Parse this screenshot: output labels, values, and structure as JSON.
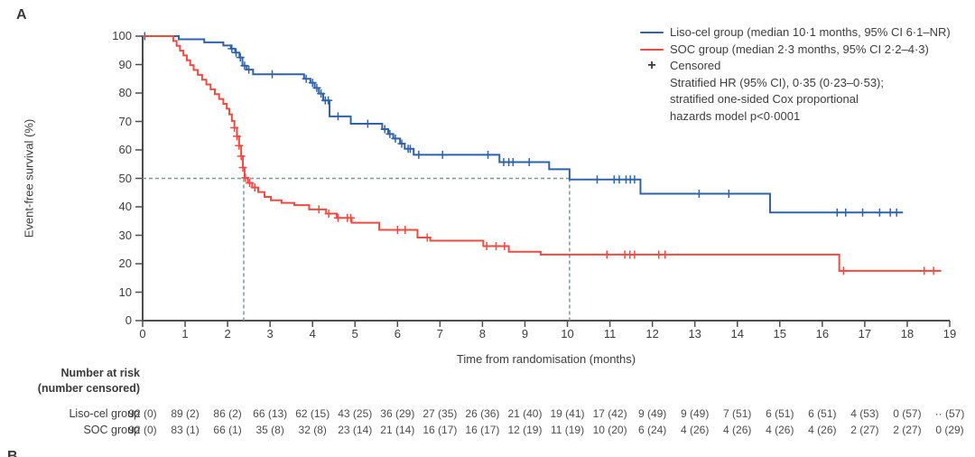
{
  "panel_label": "A",
  "panel_label_b": "B",
  "colors": {
    "liso": "#2f62ab",
    "soc": "#ee4b42",
    "dashed": "#7f96a1",
    "axis": "#4d4d4d",
    "text": "#3d3d3d"
  },
  "chart_data": {
    "type": "line",
    "subtype": "kaplan-meier-step",
    "title": "",
    "xlabel": "Time from randomisation (months)",
    "ylabel": "Event-free survival (%)",
    "xlim": [
      0,
      19
    ],
    "ylim": [
      0,
      100
    ],
    "x_ticks": [
      0,
      1,
      2,
      3,
      4,
      5,
      6,
      7,
      8,
      9,
      10,
      11,
      12,
      13,
      14,
      15,
      16,
      17,
      18,
      19
    ],
    "y_ticks": [
      0,
      10,
      20,
      30,
      40,
      50,
      60,
      70,
      80,
      90,
      100
    ],
    "grid": false,
    "legend_position": "top-right",
    "reference": {
      "h_pct": 50,
      "v_months": [
        2.38,
        10.05
      ]
    },
    "series": [
      {
        "name": "Liso-cel group",
        "median_months": "10·1",
        "ci_95": "6·1–NR",
        "steps": [
          [
            0,
            100
          ],
          [
            0.85,
            98.9
          ],
          [
            1.45,
            97.8
          ],
          [
            1.9,
            96.7
          ],
          [
            2.08,
            95.6
          ],
          [
            2.18,
            94.2
          ],
          [
            2.28,
            92.5
          ],
          [
            2.35,
            89.6
          ],
          [
            2.45,
            88.2
          ],
          [
            2.6,
            86.6
          ],
          [
            3.8,
            85
          ],
          [
            3.95,
            83.6
          ],
          [
            4.05,
            81.8
          ],
          [
            4.15,
            79.8
          ],
          [
            4.25,
            77.4
          ],
          [
            4.4,
            71.8
          ],
          [
            4.9,
            69.2
          ],
          [
            5.64,
            67.3
          ],
          [
            5.78,
            65.6
          ],
          [
            5.9,
            64
          ],
          [
            6.06,
            62.2
          ],
          [
            6.17,
            60.4
          ],
          [
            6.38,
            58.3
          ],
          [
            8.4,
            55.7
          ],
          [
            9.57,
            53.2
          ],
          [
            10.05,
            49.6
          ],
          [
            11.72,
            44.6
          ],
          [
            14.77,
            38
          ],
          [
            17.9,
            38
          ]
        ],
        "censors": [
          [
            0.05,
            100
          ],
          [
            2.1,
            95.6
          ],
          [
            2.2,
            94.2
          ],
          [
            2.3,
            92.5
          ],
          [
            2.4,
            89.6
          ],
          [
            2.5,
            88.2
          ],
          [
            3.05,
            86.6
          ],
          [
            3.85,
            85
          ],
          [
            4.0,
            83.6
          ],
          [
            4.1,
            81.8
          ],
          [
            4.2,
            79.8
          ],
          [
            4.3,
            77.4
          ],
          [
            4.37,
            77.4
          ],
          [
            4.6,
            71.8
          ],
          [
            5.3,
            69.2
          ],
          [
            5.7,
            67.3
          ],
          [
            5.82,
            65.6
          ],
          [
            5.95,
            64
          ],
          [
            6.1,
            62.2
          ],
          [
            6.25,
            60.4
          ],
          [
            6.3,
            60.4
          ],
          [
            6.5,
            58.3
          ],
          [
            7.06,
            58.3
          ],
          [
            8.13,
            58.3
          ],
          [
            8.5,
            55.7
          ],
          [
            8.62,
            55.7
          ],
          [
            8.72,
            55.7
          ],
          [
            9.1,
            55.7
          ],
          [
            10.7,
            49.6
          ],
          [
            11.1,
            49.6
          ],
          [
            11.22,
            49.6
          ],
          [
            11.38,
            49.6
          ],
          [
            11.48,
            49.6
          ],
          [
            11.58,
            49.6
          ],
          [
            13.1,
            44.6
          ],
          [
            13.8,
            44.6
          ],
          [
            16.35,
            38
          ],
          [
            16.55,
            38
          ],
          [
            16.95,
            38
          ],
          [
            17.35,
            38
          ],
          [
            17.6,
            38
          ],
          [
            17.75,
            38
          ]
        ]
      },
      {
        "name": "SOC group",
        "median_months": "2·3",
        "ci_95": "2·2–4·3",
        "steps": [
          [
            0,
            100
          ],
          [
            0.72,
            98.3
          ],
          [
            0.8,
            96.6
          ],
          [
            0.88,
            94.9
          ],
          [
            0.96,
            93.2
          ],
          [
            1.04,
            91.5
          ],
          [
            1.12,
            89.8
          ],
          [
            1.2,
            88.1
          ],
          [
            1.3,
            86.4
          ],
          [
            1.4,
            84.7
          ],
          [
            1.5,
            83
          ],
          [
            1.6,
            81.3
          ],
          [
            1.7,
            79.6
          ],
          [
            1.8,
            77.9
          ],
          [
            1.9,
            76.2
          ],
          [
            1.98,
            74.5
          ],
          [
            2.04,
            72.5
          ],
          [
            2.1,
            70.2
          ],
          [
            2.16,
            67.8
          ],
          [
            2.22,
            64.8
          ],
          [
            2.27,
            61.5
          ],
          [
            2.32,
            57.8
          ],
          [
            2.36,
            53.8
          ],
          [
            2.4,
            50.2
          ],
          [
            2.48,
            48.4
          ],
          [
            2.58,
            46.8
          ],
          [
            2.72,
            45.2
          ],
          [
            2.87,
            43.5
          ],
          [
            3.02,
            42.3
          ],
          [
            3.27,
            41.4
          ],
          [
            3.57,
            40.6
          ],
          [
            3.92,
            39.1
          ],
          [
            4.32,
            37.6
          ],
          [
            4.57,
            36.1
          ],
          [
            4.92,
            34.4
          ],
          [
            5.57,
            31.9
          ],
          [
            6.47,
            29.2
          ],
          [
            6.77,
            28.1
          ],
          [
            8.02,
            26.2
          ],
          [
            8.62,
            24.2
          ],
          [
            9.37,
            23.2
          ],
          [
            16.4,
            17.5
          ],
          [
            18.8,
            17.5
          ]
        ],
        "censors": [
          [
            2.16,
            67.8
          ],
          [
            2.22,
            64.8
          ],
          [
            2.27,
            61.5
          ],
          [
            2.32,
            57.8
          ],
          [
            2.36,
            53.8
          ],
          [
            2.42,
            50.2
          ],
          [
            2.52,
            48.4
          ],
          [
            2.64,
            46.8
          ],
          [
            4.15,
            39.1
          ],
          [
            4.38,
            37.6
          ],
          [
            4.6,
            36.1
          ],
          [
            4.82,
            36.1
          ],
          [
            4.9,
            36.1
          ],
          [
            6.0,
            31.9
          ],
          [
            6.18,
            31.9
          ],
          [
            6.7,
            29.2
          ],
          [
            8.1,
            26.2
          ],
          [
            8.32,
            26.2
          ],
          [
            8.52,
            26.2
          ],
          [
            10.93,
            23.2
          ],
          [
            11.35,
            23.2
          ],
          [
            11.47,
            23.2
          ],
          [
            11.58,
            23.2
          ],
          [
            12.15,
            23.2
          ],
          [
            12.3,
            23.2
          ],
          [
            16.5,
            17.5
          ],
          [
            18.4,
            17.5
          ],
          [
            18.62,
            17.5
          ]
        ]
      }
    ]
  },
  "legend": {
    "items": [
      {
        "label": "Liso-cel group (median 10·1 months, 95% CI 6·1–NR)",
        "swatch": "line",
        "color": "#2f62ab"
      },
      {
        "label": "SOC group (median 2·3 months, 95% CI 2·2–4·3)",
        "swatch": "line",
        "color": "#ee4b42"
      },
      {
        "label": "Censored",
        "swatch": "plus"
      }
    ],
    "plus_glyph": "+",
    "note_lines": [
      "Stratified HR (95% CI), 0·35 (0·23–0·53);",
      "stratified one-sided Cox proportional",
      "hazards model p<0·0001"
    ]
  },
  "risk_table": {
    "header_line1": "Number at risk",
    "header_line2": "(number censored)",
    "rows": [
      {
        "label": "Liso-cel group",
        "values": [
          "92 (0)",
          "89 (2)",
          "86 (2)",
          "66 (13)",
          "62 (15)",
          "43 (25)",
          "36 (29)",
          "27 (35)",
          "26 (36)",
          "21 (40)",
          "19 (41)",
          "17 (42)",
          "9 (49)",
          "9 (49)",
          "7 (51)",
          "6 (51)",
          "6 (51)",
          "4 (53)",
          "0 (57)",
          "·· (57)"
        ]
      },
      {
        "label": "SOC group",
        "values": [
          "92 (0)",
          "83 (1)",
          "66 (1)",
          "35 (8)",
          "32 (8)",
          "23 (14)",
          "21 (14)",
          "16 (17)",
          "16 (17)",
          "12 (19)",
          "11 (19)",
          "10 (20)",
          "6 (24)",
          "4 (26)",
          "4 (26)",
          "4 (26)",
          "4 (26)",
          "2 (27)",
          "2 (27)",
          "0 (29)"
        ]
      }
    ]
  }
}
